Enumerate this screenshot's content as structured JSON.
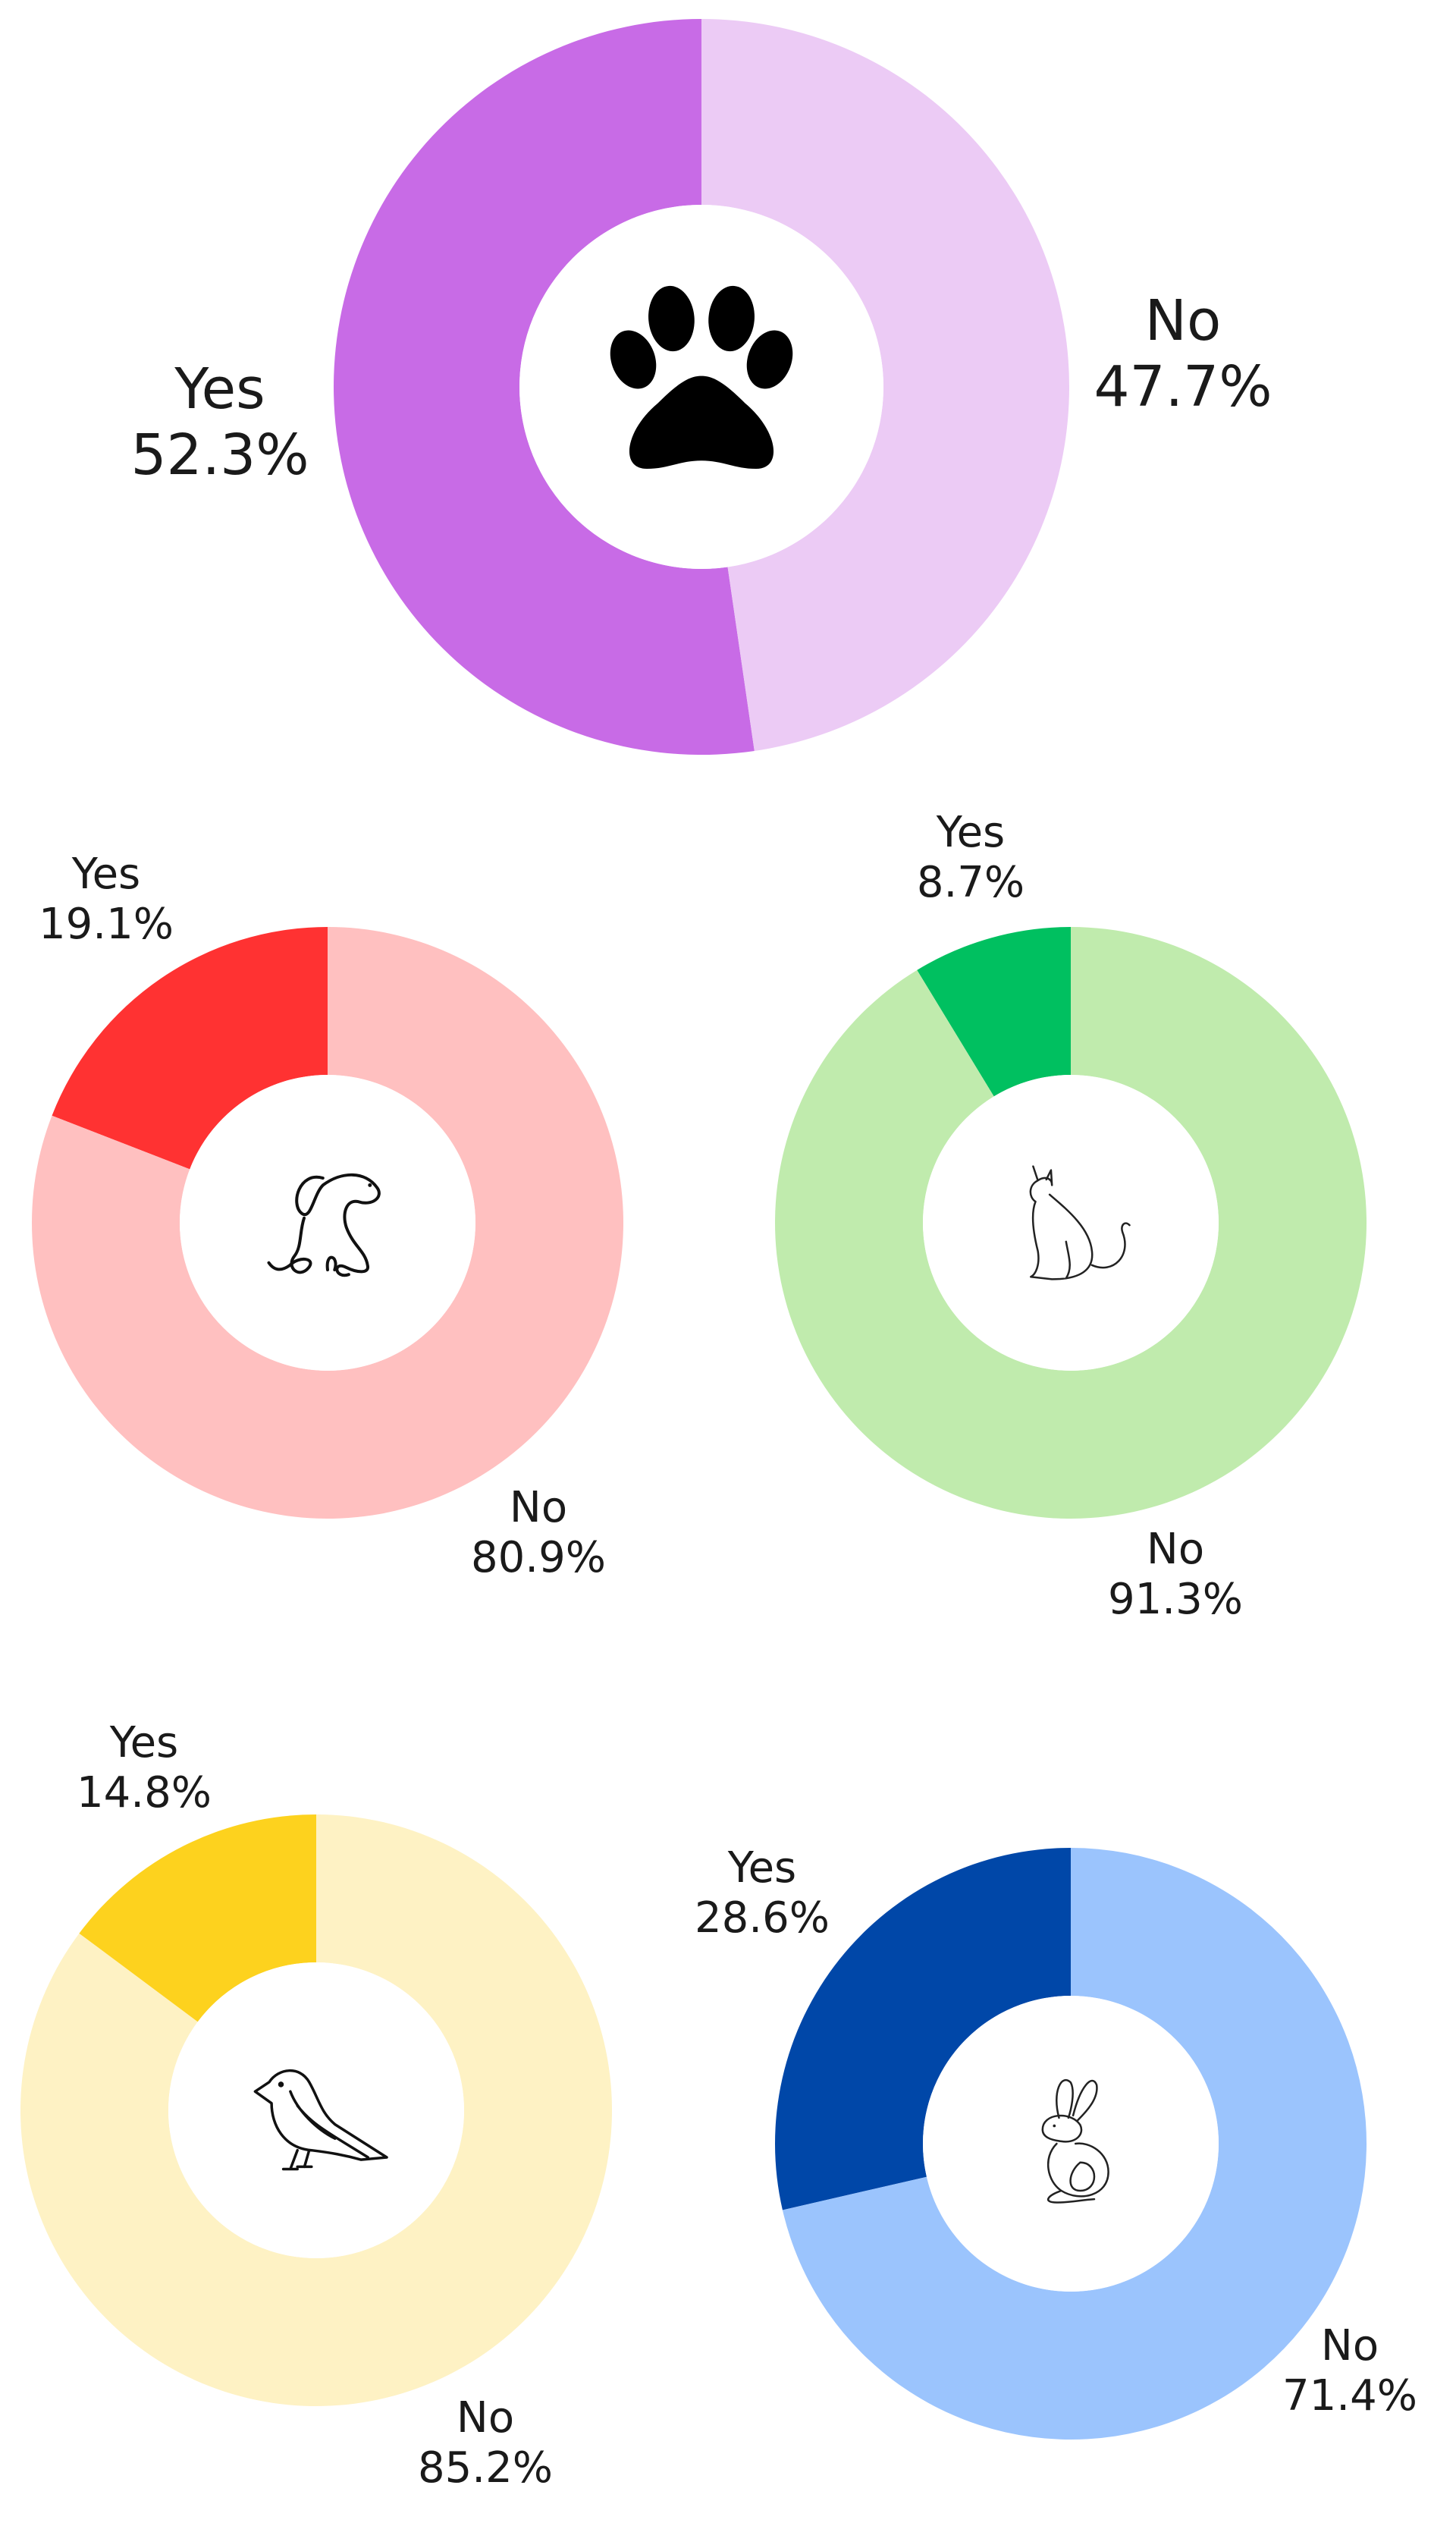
{
  "chart_data": [
    {
      "type": "pie",
      "hole": true,
      "icon": "paw-icon",
      "categories": [
        "Yes",
        "No"
      ],
      "values": [
        52.3,
        47.7
      ],
      "value_labels": [
        "52.3%",
        "47.7%"
      ],
      "colors": [
        "#c86be6",
        "#eccbf5"
      ]
    },
    {
      "type": "pie",
      "hole": true,
      "icon": "dog-icon",
      "categories": [
        "Yes",
        "No"
      ],
      "values": [
        19.1,
        80.9
      ],
      "value_labels": [
        "19.1%",
        "80.9%"
      ],
      "colors": [
        "#ff3232",
        "#ffc0c0"
      ]
    },
    {
      "type": "pie",
      "hole": true,
      "icon": "cat-icon",
      "categories": [
        "Yes",
        "No"
      ],
      "values": [
        8.7,
        91.3
      ],
      "value_labels": [
        "8.7%",
        "91.3%"
      ],
      "colors": [
        "#00c060",
        "#c0ebad"
      ]
    },
    {
      "type": "pie",
      "hole": true,
      "icon": "bird-icon",
      "categories": [
        "Yes",
        "No"
      ],
      "values": [
        14.8,
        85.2
      ],
      "value_labels": [
        "14.8%",
        "85.2%"
      ],
      "colors": [
        "#fdd21e",
        "#fef2c4"
      ]
    },
    {
      "type": "pie",
      "hole": true,
      "icon": "rabbit-icon",
      "categories": [
        "Yes",
        "No"
      ],
      "values": [
        28.6,
        71.4
      ],
      "value_labels": [
        "28.6%",
        "71.4%"
      ],
      "colors": [
        "#0047a8",
        "#9bc4fd"
      ]
    }
  ]
}
